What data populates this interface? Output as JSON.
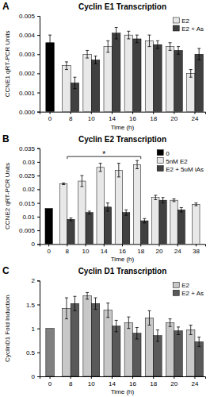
{
  "chart_data": [
    {
      "type": "bar",
      "panel": "A",
      "title": "Cyclin E1 Transcription",
      "x_label": "Time (h)",
      "y_label": "CCNE1 qRT-PCR Units",
      "categories": [
        "0",
        "8",
        "10",
        "14",
        "16",
        "18",
        "20",
        "24"
      ],
      "series": [
        {
          "name": "E2",
          "color": "#e8e8e8",
          "colors": [
            "#000000",
            "#e8e8e8",
            "#e8e8e8",
            "#e8e8e8",
            "#e8e8e8",
            "#e8e8e8",
            "#e8e8e8",
            "#e8e8e8"
          ],
          "values": [
            0.0036,
            0.0024,
            0.003,
            0.0034,
            0.004,
            0.0037,
            0.0034,
            0.002
          ],
          "errors": [
            0.0004,
            0.0002,
            0.0002,
            0.0003,
            0.0002,
            0.0003,
            0.0002,
            0.0002
          ]
        },
        {
          "name": "E2 + As",
          "color": "#404040",
          "values": [
            null,
            0.0015,
            0.0027,
            0.0041,
            0.0038,
            0.0035,
            0.0032,
            0.003
          ],
          "errors": [
            null,
            0.0003,
            0.0002,
            0.0003,
            0.0002,
            0.0002,
            0.0002,
            0.0003
          ]
        }
      ],
      "ylim": [
        0,
        0.005
      ],
      "yticks": [
        {
          "value": 0,
          "label": "0.000"
        },
        {
          "value": 0.001,
          "label": "0.001"
        },
        {
          "value": 0.002,
          "label": "0.002"
        },
        {
          "value": 0.003,
          "label": "0.003"
        },
        {
          "value": 0.004,
          "label": "0.004"
        },
        {
          "value": 0.005,
          "label": "0.005"
        }
      ],
      "legend": "upper right"
    },
    {
      "type": "bar",
      "panel": "B",
      "title": "Cyclin E2 Transcription",
      "x_label": "Time (h)",
      "y_label": "CCNE2 qRT-PCR Units",
      "categories": [
        "0",
        "8",
        "10",
        "14",
        "16",
        "18",
        "20",
        "24",
        "38"
      ],
      "series": [
        {
          "name": "0",
          "color": "#000000",
          "values": [
            0.013,
            null,
            null,
            null,
            null,
            null,
            null,
            null,
            null
          ]
        },
        {
          "name": "5nM E2",
          "color": "#e8e8e8",
          "values": [
            null,
            0.022,
            0.023,
            0.028,
            0.027,
            0.029,
            0.017,
            0.016,
            0.0145
          ],
          "errors": [
            null,
            0.0003,
            0.002,
            0.0015,
            0.0025,
            0.0015,
            0.0008,
            0.0005,
            0.0005
          ]
        },
        {
          "name": "E2 + 5uM iAs",
          "color": "#404040",
          "values": [
            null,
            0.009,
            0.0115,
            0.0135,
            0.0115,
            0.0085,
            0.016,
            0.0125,
            null
          ],
          "errors": [
            null,
            0.0005,
            0.0005,
            0.0015,
            0.001,
            0.0008,
            0.001,
            0.0008,
            null
          ]
        }
      ],
      "ylim": [
        0,
        0.035
      ],
      "yticks": [
        0,
        0.005,
        0.01,
        0.015,
        0.02,
        0.025,
        0.03,
        0.035
      ],
      "annotations": [
        {
          "text": "*",
          "from": "8",
          "to": "18"
        }
      ],
      "legend": "upper right"
    },
    {
      "type": "bar",
      "panel": "C",
      "title": "Cyclin D1 Transcription",
      "x_label": "Time (h)",
      "y_label": "CyclinD1 Fold Induction",
      "categories": [
        "0",
        "8",
        "10",
        "14",
        "16",
        "18",
        "20",
        "24"
      ],
      "series": [
        {
          "name": "E2",
          "color": "#c8c8c8",
          "colors": [
            "#808080",
            "#c8c8c8",
            "#c8c8c8",
            "#c8c8c8",
            "#c8c8c8",
            "#c8c8c8",
            "#c8c8c8",
            "#c8c8c8"
          ],
          "values": [
            1,
            1.42,
            1.68,
            1.38,
            1.12,
            1.22,
            1.12,
            0.97
          ],
          "errors": [
            null,
            0.22,
            0.07,
            0.15,
            0.12,
            0.15,
            0.08,
            0.1
          ]
        },
        {
          "name": "E2 + As",
          "color": "#595959",
          "values": [
            null,
            1.52,
            1.52,
            1.05,
            0.9,
            0.85,
            0.95,
            0.72
          ],
          "errors": [
            null,
            0.15,
            0.12,
            0.12,
            0.12,
            0.12,
            0.08,
            0.1
          ]
        }
      ],
      "ylim": [
        0,
        2
      ],
      "yticks": [
        0,
        0.5,
        1,
        1.5,
        2
      ],
      "legend": "upper right"
    }
  ]
}
